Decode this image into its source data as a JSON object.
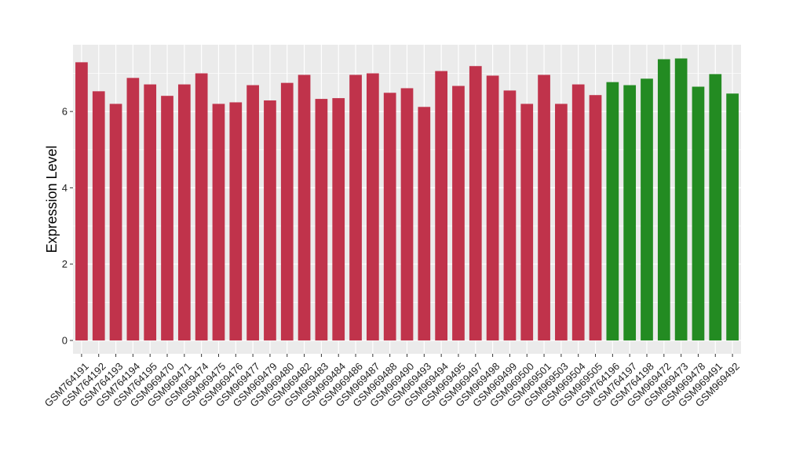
{
  "chart_data": {
    "type": "bar",
    "title": "",
    "xlabel": "",
    "ylabel": "Expression Level",
    "ylim": [
      -0.35,
      7.75
    ],
    "yticks": [
      0,
      2,
      4,
      6
    ],
    "grid": true,
    "legend": "none",
    "colors": {
      "group_a": "#c0334b",
      "group_b": "#238b22",
      "panel_bg": "#ebebeb",
      "grid": "#ffffff"
    },
    "categories": [
      "GSM764191",
      "GSM764192",
      "GSM764193",
      "GSM764194",
      "GSM764195",
      "GSM969470",
      "GSM969471",
      "GSM969474",
      "GSM969475",
      "GSM969476",
      "GSM969477",
      "GSM969479",
      "GSM969480",
      "GSM969482",
      "GSM969483",
      "GSM969484",
      "GSM969486",
      "GSM969487",
      "GSM969488",
      "GSM969490",
      "GSM969493",
      "GSM969494",
      "GSM969495",
      "GSM969497",
      "GSM969498",
      "GSM969499",
      "GSM969500",
      "GSM969501",
      "GSM969503",
      "GSM969504",
      "GSM969505",
      "GSM764196",
      "GSM764197",
      "GSM764198",
      "GSM969472",
      "GSM969473",
      "GSM969478",
      "GSM969491",
      "GSM969492"
    ],
    "values": [
      7.29,
      6.53,
      6.2,
      6.88,
      6.71,
      6.41,
      6.71,
      7.0,
      6.2,
      6.24,
      6.69,
      6.29,
      6.75,
      6.96,
      6.33,
      6.35,
      6.96,
      7.0,
      6.49,
      6.61,
      6.12,
      7.06,
      6.67,
      7.19,
      6.94,
      6.55,
      6.2,
      6.96,
      6.2,
      6.71,
      6.43,
      6.77,
      6.69,
      6.86,
      7.37,
      7.39,
      6.65,
      6.98,
      6.47
    ],
    "groups": [
      "a",
      "a",
      "a",
      "a",
      "a",
      "a",
      "a",
      "a",
      "a",
      "a",
      "a",
      "a",
      "a",
      "a",
      "a",
      "a",
      "a",
      "a",
      "a",
      "a",
      "a",
      "a",
      "a",
      "a",
      "a",
      "a",
      "a",
      "a",
      "a",
      "a",
      "a",
      "b",
      "b",
      "b",
      "b",
      "b",
      "b",
      "b",
      "b"
    ]
  }
}
